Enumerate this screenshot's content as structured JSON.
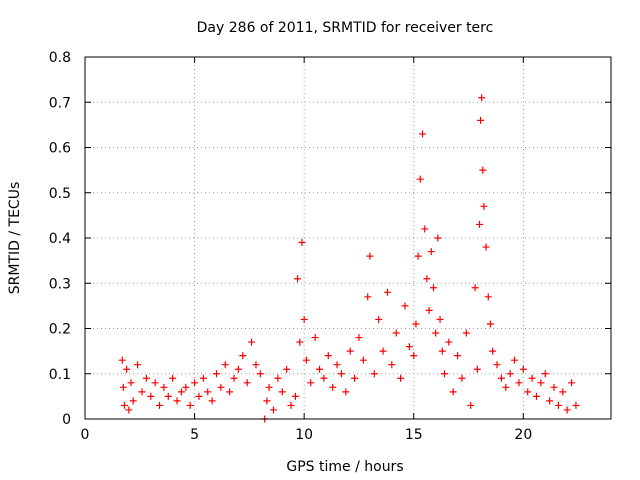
{
  "chart_data": {
    "type": "scatter",
    "title": "Day 286 of 2011, SRMTID for receiver terc",
    "xlabel": "GPS time / hours",
    "ylabel": "SRMTID / TECUs",
    "xlim": [
      0,
      24
    ],
    "ylim": [
      0,
      0.8
    ],
    "xticks": [
      "0",
      "5",
      "10",
      "15",
      "20"
    ],
    "yticks": [
      "0",
      "0.1",
      "0.2",
      "0.3",
      "0.4",
      "0.5",
      "0.6",
      "0.7",
      "0.8"
    ],
    "grid": true,
    "marker": "+",
    "color": "#ff0000",
    "series": [
      {
        "name": "SRMTID",
        "x": [
          1.7,
          1.75,
          1.8,
          1.9,
          2.0,
          2.1,
          2.2,
          2.4,
          2.6,
          2.8,
          3.0,
          3.2,
          3.4,
          3.6,
          3.8,
          4.0,
          4.2,
          4.4,
          4.6,
          4.8,
          5.0,
          5.2,
          5.4,
          5.6,
          5.8,
          6.0,
          6.2,
          6.4,
          6.6,
          6.8,
          7.0,
          7.2,
          7.4,
          7.6,
          7.8,
          8.0,
          8.2,
          8.3,
          8.4,
          8.6,
          8.8,
          9.0,
          9.2,
          9.4,
          9.6,
          9.7,
          9.8,
          9.9,
          10.0,
          10.1,
          10.3,
          10.5,
          10.7,
          10.9,
          11.1,
          11.3,
          11.5,
          11.7,
          11.9,
          12.1,
          12.3,
          12.5,
          12.7,
          12.9,
          13.0,
          13.2,
          13.4,
          13.6,
          13.8,
          14.0,
          14.2,
          14.4,
          14.6,
          14.8,
          15.0,
          15.1,
          15.2,
          15.3,
          15.4,
          15.5,
          15.6,
          15.7,
          15.8,
          15.9,
          16.0,
          16.1,
          16.2,
          16.3,
          16.4,
          16.6,
          16.8,
          17.0,
          17.2,
          17.4,
          17.6,
          17.8,
          17.9,
          18.0,
          18.05,
          18.1,
          18.15,
          18.2,
          18.3,
          18.4,
          18.5,
          18.6,
          18.8,
          19.0,
          19.2,
          19.4,
          19.6,
          19.8,
          20.0,
          20.2,
          20.4,
          20.6,
          20.8,
          21.0,
          21.2,
          21.4,
          21.6,
          21.8,
          22.0,
          22.2,
          22.4
        ],
        "y": [
          0.13,
          0.07,
          0.03,
          0.11,
          0.02,
          0.08,
          0.04,
          0.12,
          0.06,
          0.09,
          0.05,
          0.08,
          0.03,
          0.07,
          0.05,
          0.09,
          0.04,
          0.06,
          0.07,
          0.03,
          0.08,
          0.05,
          0.09,
          0.06,
          0.04,
          0.1,
          0.07,
          0.12,
          0.06,
          0.09,
          0.11,
          0.14,
          0.08,
          0.17,
          0.12,
          0.1,
          0.0,
          0.04,
          0.07,
          0.02,
          0.09,
          0.06,
          0.11,
          0.03,
          0.05,
          0.31,
          0.17,
          0.39,
          0.22,
          0.13,
          0.08,
          0.18,
          0.11,
          0.09,
          0.14,
          0.07,
          0.12,
          0.1,
          0.06,
          0.15,
          0.09,
          0.18,
          0.13,
          0.27,
          0.36,
          0.1,
          0.22,
          0.15,
          0.28,
          0.12,
          0.19,
          0.09,
          0.25,
          0.16,
          0.14,
          0.21,
          0.36,
          0.53,
          0.63,
          0.42,
          0.31,
          0.24,
          0.37,
          0.29,
          0.19,
          0.4,
          0.22,
          0.15,
          0.1,
          0.17,
          0.06,
          0.14,
          0.09,
          0.19,
          0.03,
          0.29,
          0.11,
          0.43,
          0.66,
          0.71,
          0.55,
          0.47,
          0.38,
          0.27,
          0.21,
          0.15,
          0.12,
          0.09,
          0.07,
          0.1,
          0.13,
          0.08,
          0.11,
          0.06,
          0.09,
          0.05,
          0.08,
          0.1,
          0.04,
          0.07,
          0.03,
          0.06,
          0.02,
          0.08,
          0.03
        ]
      }
    ]
  }
}
